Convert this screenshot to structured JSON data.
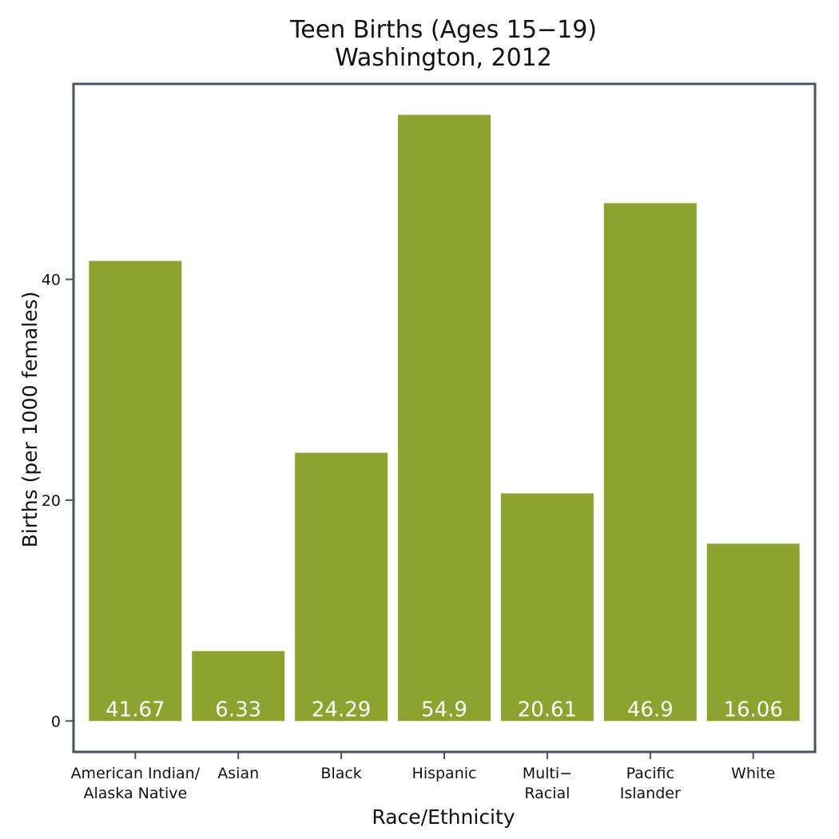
{
  "chart_data": {
    "type": "bar",
    "title": [
      "Teen Births (Ages 15−19)",
      "Washington, 2012"
    ],
    "xlabel": "Race/Ethnicity",
    "ylabel": "Births (per 1000 females)",
    "categories": [
      [
        "American Indian/",
        "Alaska Native"
      ],
      [
        "Asian"
      ],
      [
        "Black"
      ],
      [
        "Hispanic"
      ],
      [
        "Multi−",
        "Racial"
      ],
      [
        "Pacific",
        "Islander"
      ],
      [
        "White"
      ]
    ],
    "values": [
      41.67,
      6.33,
      24.29,
      54.9,
      20.61,
      46.9,
      16.06
    ],
    "data_labels": [
      "41.67",
      "6.33",
      "24.29",
      "54.9",
      "20.61",
      "46.9",
      "16.06"
    ],
    "y_ticks": [
      0,
      20,
      40
    ],
    "ylim": [
      -2.8,
      57.7
    ],
    "grid": false,
    "legend": "none",
    "bar_color": "#8da330",
    "frame_color": "#475263"
  }
}
